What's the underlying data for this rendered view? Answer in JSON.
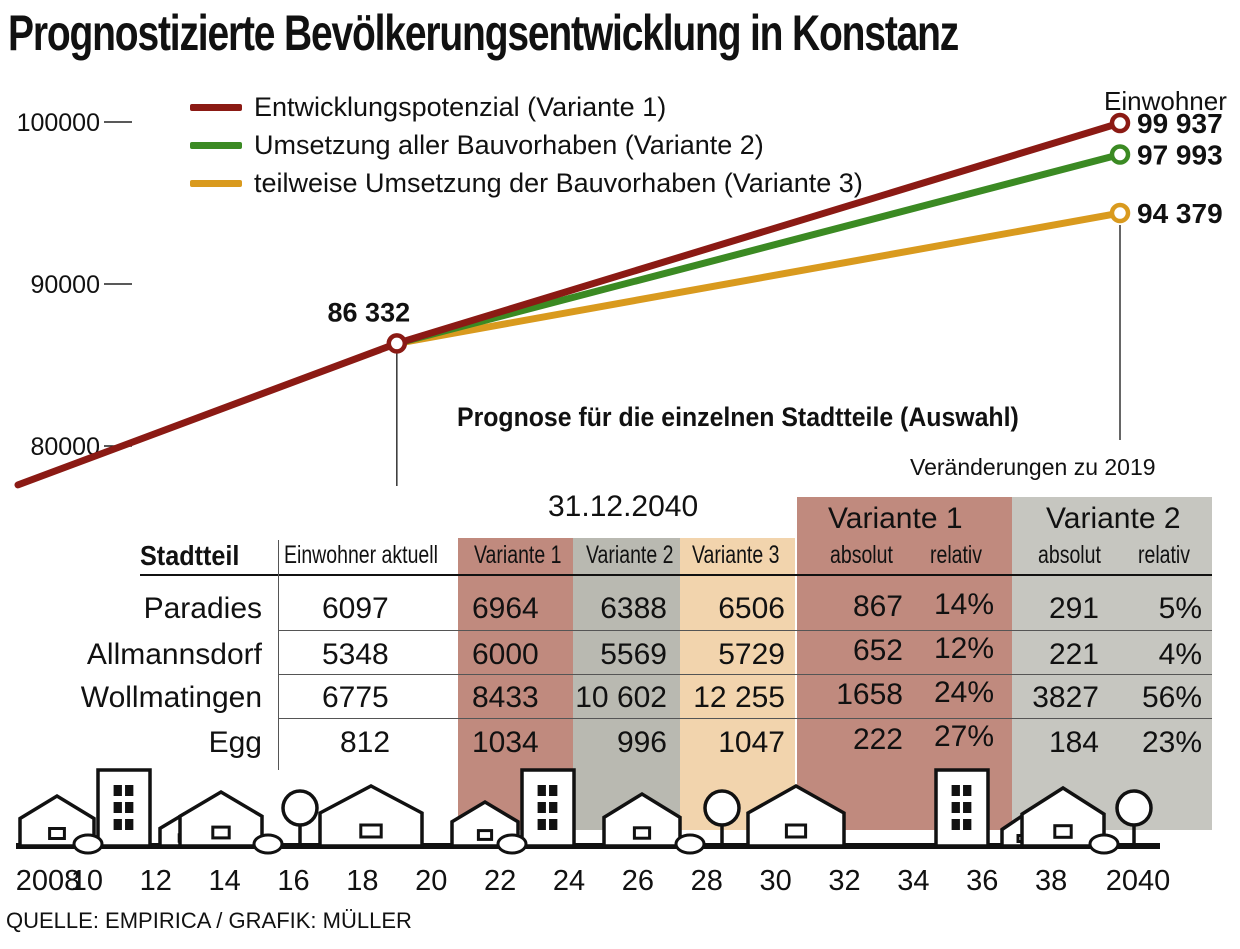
{
  "title": "Prognostizierte Bevölkerungsentwicklung in Konstanz",
  "units_label": "Einwohner",
  "subtitle": "Prognose für die einzelnen Stadtteile (Auswahl)",
  "changes_label": "Veränderungen zu 2019",
  "table_date": "31.12.2040",
  "source": "QUELLE: EMPIRICA / GRAFIK: MÜLLER",
  "colors": {
    "variante1": "#8b1a14",
    "variante2": "#3b8a23",
    "variante3": "#d99a1e",
    "v1_bg": "#c08a7e",
    "v2_bg": "#b9b9b1",
    "v3_bg": "#f2d4ad",
    "grey_bg": "#c6c6c0"
  },
  "chart_data": {
    "type": "line",
    "title": "Prognostizierte Bevölkerungsentwicklung in Konstanz",
    "ylabel": "Einwohner",
    "xlim": [
      2008,
      2040
    ],
    "ylim": [
      77000,
      102000
    ],
    "yticks": [
      {
        "value": 100000,
        "label": "100000"
      },
      {
        "value": 90000,
        "label": "90000"
      },
      {
        "value": 80000,
        "label": "80000"
      }
    ],
    "xticks": [
      {
        "value": 2008,
        "label": "2008"
      },
      {
        "value": 2010,
        "label": "10"
      },
      {
        "value": 2012,
        "label": "12"
      },
      {
        "value": 2014,
        "label": "14"
      },
      {
        "value": 2016,
        "label": "16"
      },
      {
        "value": 2018,
        "label": "18"
      },
      {
        "value": 2020,
        "label": "20"
      },
      {
        "value": 2022,
        "label": "22"
      },
      {
        "value": 2024,
        "label": "24"
      },
      {
        "value": 2026,
        "label": "26"
      },
      {
        "value": 2028,
        "label": "28"
      },
      {
        "value": 2030,
        "label": "30"
      },
      {
        "value": 2032,
        "label": "32"
      },
      {
        "value": 2034,
        "label": "34"
      },
      {
        "value": 2036,
        "label": "36"
      },
      {
        "value": 2038,
        "label": "38"
      },
      {
        "value": 2040,
        "label": "2040"
      }
    ],
    "history": {
      "x": [
        2008,
        2019
      ],
      "y": [
        77600,
        86332
      ]
    },
    "start_point": {
      "x": 2019,
      "y": 86332,
      "label": "86 332"
    },
    "series": [
      {
        "name": "Entwicklungspotenzial (Variante 1)",
        "x": [
          2019,
          2040
        ],
        "y": [
          86332,
          99937
        ],
        "end_label": "99 937",
        "color": "#8b1a14"
      },
      {
        "name": "Umsetzung aller Bauvorhaben (Variante 2)",
        "x": [
          2019,
          2040
        ],
        "y": [
          86332,
          97993
        ],
        "end_label": "97 993",
        "color": "#3b8a23"
      },
      {
        "name": "teilweise Umsetzung der Bauvorhaben (Variante 3)",
        "x": [
          2019,
          2040
        ],
        "y": [
          86332,
          94379
        ],
        "end_label": "94 379",
        "color": "#d99a1e"
      }
    ],
    "legend_position": "top-left"
  },
  "table": {
    "headers": {
      "stadtteil": "Stadtteil",
      "einwohner": "Einwohner aktuell",
      "v1": "Variante 1",
      "v2": "Variante 2",
      "v3": "Variante 3",
      "grp_v1": "Variante 1",
      "grp_v2": "Variante 2",
      "absolut": "absolut",
      "relativ": "relativ"
    },
    "rows": [
      {
        "name": "Paradies",
        "aktuell": "6097",
        "v1": "6964",
        "v2": "6388",
        "v3": "6506",
        "v1_abs": "867",
        "v1_rel": "14%",
        "v2_abs": "291",
        "v2_rel": "5%"
      },
      {
        "name": "Allmannsdorf",
        "aktuell": "5348",
        "v1": "6000",
        "v2": "5569",
        "v3": "5729",
        "v1_abs": "652",
        "v1_rel": "12%",
        "v2_abs": "221",
        "v2_rel": "4%"
      },
      {
        "name": "Wollmatingen",
        "aktuell": "6775",
        "v1": "8433",
        "v2": "10 602",
        "v3": "12 255",
        "v1_abs": "1658",
        "v1_rel": "24%",
        "v2_abs": "3827",
        "v2_rel": "56%"
      },
      {
        "name": "Egg",
        "aktuell": "812",
        "v1": "1034",
        "v2": "996",
        "v3": "1047",
        "v1_abs": "222",
        "v1_rel": "27%",
        "v2_abs": "184",
        "v2_rel": "23%"
      }
    ]
  }
}
